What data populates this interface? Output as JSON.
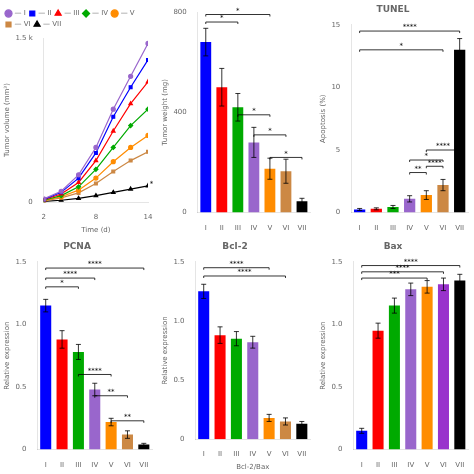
{
  "chart_data": [
    {
      "type": "line",
      "x": [
        2,
        4,
        6,
        8,
        10,
        12,
        14
      ],
      "series": [
        {
          "name": "— I",
          "color": "#9966CC",
          "marker": "circle",
          "values": [
            30,
            100,
            250,
            500,
            850,
            1150,
            1450
          ]
        },
        {
          "name": "— II",
          "color": "#0000FF",
          "marker": "square",
          "values": [
            25,
            90,
            220,
            450,
            780,
            1050,
            1300
          ]
        },
        {
          "name": "— III",
          "color": "#FF0000",
          "marker": "triangle",
          "values": [
            22,
            75,
            180,
            380,
            650,
            900,
            1100
          ]
        },
        {
          "name": "— IV",
          "color": "#00AA00",
          "marker": "diamond",
          "values": [
            18,
            60,
            140,
            300,
            500,
            700,
            850
          ]
        },
        {
          "name": "— V",
          "color": "#FF8C00",
          "marker": "circle",
          "values": [
            15,
            50,
            110,
            220,
            370,
            500,
            610
          ]
        },
        {
          "name": "— VI",
          "color": "#CC8844",
          "marker": "square",
          "values": [
            12,
            40,
            85,
            170,
            280,
            380,
            460
          ]
        },
        {
          "name": "— VII",
          "color": "#000000",
          "marker": "triangle",
          "values": [
            8,
            18,
            35,
            60,
            90,
            120,
            150
          ]
        }
      ],
      "xlabel": "Time (d)",
      "ylabel": "Tumor volume (mm³)",
      "xlim": [
        2,
        14
      ],
      "ylim": [
        0,
        1500
      ],
      "xticks": [
        2,
        8,
        14
      ],
      "yticks": [
        0,
        {
          "value": 1500,
          "label": "1.5 k"
        }
      ],
      "legend": "upper left",
      "grid": false,
      "annotations": [
        {
          "text": "*",
          "x": 14.2,
          "y": 150
        }
      ]
    },
    {
      "type": "bar",
      "categories": [
        "I",
        "II",
        "III",
        "IV",
        "V",
        "VI",
        "VII"
      ],
      "values": [
        680,
        500,
        420,
        280,
        175,
        165,
        45
      ],
      "errors": [
        55,
        75,
        55,
        60,
        42,
        48,
        12
      ],
      "colors": [
        "#0000FF",
        "#FF0000",
        "#00AA00",
        "#9966CC",
        "#FF8C00",
        "#CC8844",
        "#000000"
      ],
      "ylabel": "Tumor weight (mg)",
      "ylim": [
        0,
        800
      ],
      "yticks": [
        0,
        400,
        800
      ],
      "grid": false,
      "annotations": [
        {
          "text": "*",
          "from": "I",
          "to": "III",
          "y": 760
        },
        {
          "text": "*",
          "from": "I",
          "to": "V",
          "y": 790
        },
        {
          "text": "*",
          "from": "III",
          "to": "V",
          "y": 390
        },
        {
          "text": "*",
          "from": "IV",
          "to": "VI",
          "y": 310
        },
        {
          "text": "*",
          "from": "V",
          "to": "VII",
          "y": 220
        }
      ]
    },
    {
      "type": "bar",
      "title": "TUNEL",
      "categories": [
        "I",
        "II",
        "III",
        "IV",
        "V",
        "VI",
        "VII"
      ],
      "values": [
        0.25,
        0.3,
        0.45,
        1.1,
        1.4,
        2.2,
        13.0
      ],
      "errors": [
        0.08,
        0.08,
        0.12,
        0.25,
        0.35,
        0.45,
        0.9
      ],
      "colors": [
        "#0000FF",
        "#FF0000",
        "#00AA00",
        "#9966CC",
        "#FF8C00",
        "#CC8844",
        "#000000"
      ],
      "ylabel": "Apoptosis (%)",
      "ylim": [
        0,
        15
      ],
      "yticks": [
        0,
        5,
        10,
        15
      ],
      "grid": false,
      "annotations": [
        {
          "text": "****",
          "from": "I",
          "to": "VII",
          "y": 14.5
        },
        {
          "text": "*",
          "from": "I",
          "to": "VI",
          "y": 13.0
        },
        {
          "text": "**",
          "from": "IV",
          "to": "V",
          "y": 3.2
        },
        {
          "text": "*",
          "from": "IV",
          "to": "VI",
          "y": 4.2
        },
        {
          "text": "****",
          "from": "V",
          "to": "VI",
          "y": 3.7
        },
        {
          "text": "****",
          "from": "V",
          "to": "VII",
          "y": 5.0
        }
      ]
    },
    {
      "type": "bar",
      "title": "PCNA",
      "categories": [
        "I",
        "II",
        "III",
        "IV",
        "V",
        "VI",
        "VII"
      ],
      "values": [
        1.15,
        0.88,
        0.78,
        0.48,
        0.22,
        0.12,
        0.04
      ],
      "errors": [
        0.05,
        0.07,
        0.06,
        0.05,
        0.03,
        0.03,
        0.01
      ],
      "colors": [
        "#0000FF",
        "#FF0000",
        "#00AA00",
        "#9966CC",
        "#FF8C00",
        "#CC8844",
        "#000000"
      ],
      "ylabel": "Relative expression",
      "ylim": [
        0,
        1.5
      ],
      "yticks": [
        0,
        0.5,
        {
          "value": 1,
          "label": "1.0"
        },
        1.5
      ],
      "grid": false,
      "annotations": [
        {
          "text": "****",
          "from": "I",
          "to": "VII",
          "y": 1.45
        },
        {
          "text": "*",
          "from": "I",
          "to": "III",
          "y": 1.3
        },
        {
          "text": "****",
          "from": "I",
          "to": "IV",
          "y": 1.37
        },
        {
          "text": "****",
          "from": "III",
          "to": "V",
          "y": 0.6
        },
        {
          "text": "**",
          "from": "IV",
          "to": "VI",
          "y": 0.43
        },
        {
          "text": "**",
          "from": "V",
          "to": "VII",
          "y": 0.23
        }
      ]
    },
    {
      "type": "bar",
      "title": "Bcl-2",
      "categories": [
        "I",
        "II",
        "III",
        "IV",
        "V",
        "VI",
        "VII"
      ],
      "values": [
        1.25,
        0.88,
        0.85,
        0.82,
        0.18,
        0.15,
        0.13
      ],
      "errors": [
        0.06,
        0.07,
        0.06,
        0.05,
        0.03,
        0.03,
        0.02
      ],
      "colors": [
        "#0000FF",
        "#FF0000",
        "#00AA00",
        "#9966CC",
        "#FF8C00",
        "#CC8844",
        "#000000"
      ],
      "xlabel": "Bcl-2/Bax",
      "ylabel": "Relative expression",
      "ylim": [
        0,
        1.5
      ],
      "yticks": [
        0,
        0.5,
        {
          "value": 1,
          "label": "1.0"
        },
        1.5
      ],
      "grid": false,
      "annotations": [
        {
          "text": "****",
          "from": "I",
          "to": "V",
          "y": 1.45
        },
        {
          "text": "****",
          "from": "I",
          "to": "VI",
          "y": 1.38
        }
      ]
    },
    {
      "type": "bar",
      "title": "Bax",
      "categories": [
        "I",
        "II",
        "III",
        "IV",
        "V",
        "VI",
        "VII"
      ],
      "values": [
        0.15,
        0.95,
        1.15,
        1.28,
        1.3,
        1.32,
        1.35
      ],
      "errors": [
        0.02,
        0.06,
        0.06,
        0.05,
        0.05,
        0.05,
        0.05
      ],
      "colors": [
        "#0000FF",
        "#FF0000",
        "#00AA00",
        "#9966CC",
        "#FF8C00",
        "#9933CC",
        "#000000"
      ],
      "ylabel": "Relative expression",
      "ylim": [
        0,
        1.5
      ],
      "yticks": [
        0,
        0.5,
        {
          "value": 1,
          "label": "1.0"
        },
        1.5
      ],
      "grid": false,
      "annotations": [
        {
          "text": "****",
          "from": "I",
          "to": "VII",
          "y": 1.47
        },
        {
          "text": "****",
          "from": "I",
          "to": "VI",
          "y": 1.42
        },
        {
          "text": "***",
          "from": "I",
          "to": "V",
          "y": 1.37
        }
      ]
    }
  ]
}
